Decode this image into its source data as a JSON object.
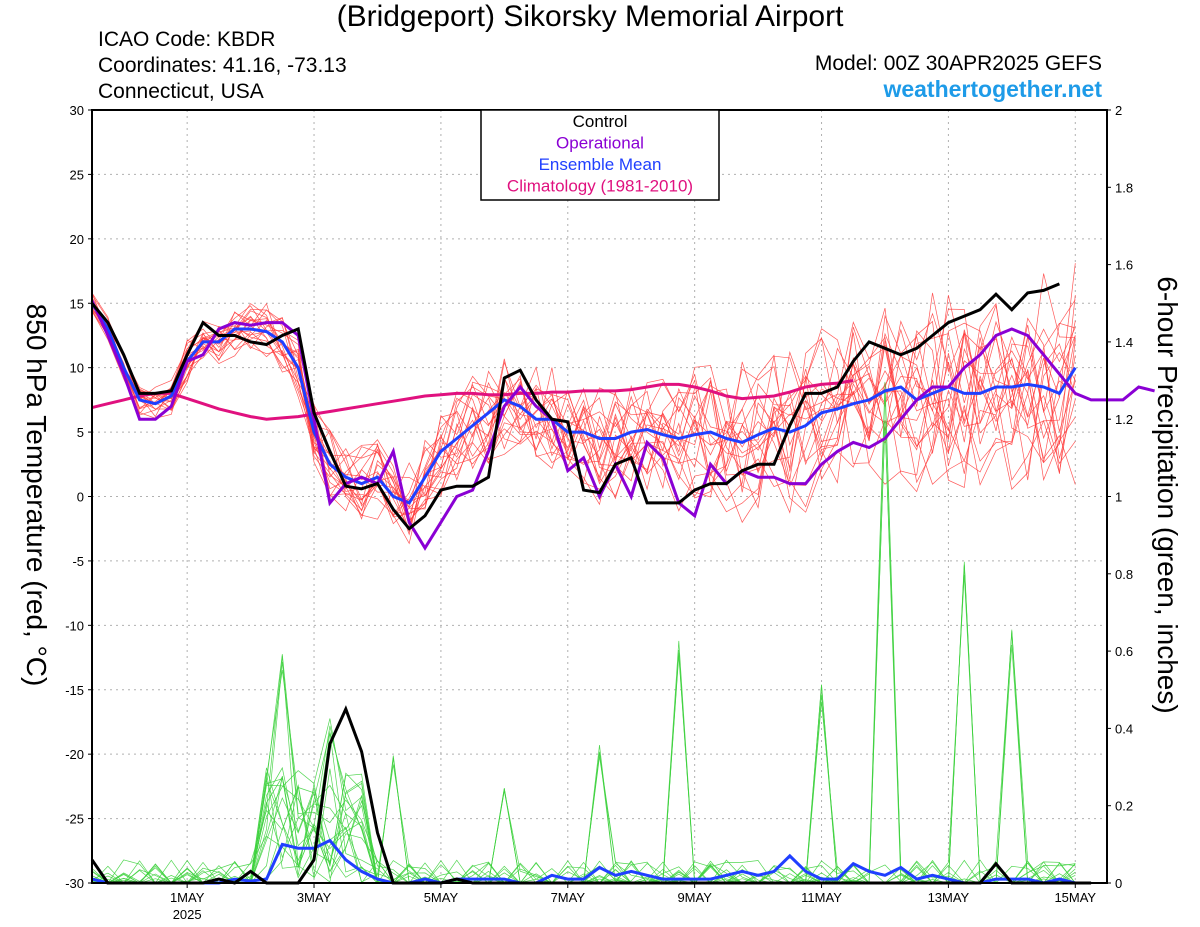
{
  "header": {
    "title": "(Bridgeport) Sikorsky Memorial Airport",
    "icao": "ICAO Code: KBDR",
    "coordinates": "Coordinates: 41.16, -73.13",
    "region": "Connecticut, USA",
    "model": "Model: 00Z 30APR2025 GEFS",
    "brand": "weathertogether.net"
  },
  "colors": {
    "control": "#000000",
    "operational": "#8a00d4",
    "ensemble_mean": "#1f3fff",
    "climatology": "#e0117f",
    "members_temp": "#ff3b3b",
    "members_precip": "#3fd13f",
    "brand": "#1e9be8"
  },
  "chart_data": {
    "type": "line",
    "xlabel": "",
    "ylabel": "850 hPa Temperature (red, °C)",
    "y2label": "6-hour Precipitation (green, inches)",
    "ylim": [
      -30,
      30
    ],
    "y2lim": [
      0,
      2
    ],
    "yticks": [
      30,
      25,
      20,
      15,
      10,
      5,
      0,
      -5,
      -10,
      -15,
      -20,
      -25,
      -30
    ],
    "y2ticks": [
      2,
      1.8,
      1.6,
      1.4,
      1.2,
      1,
      0.8,
      0.6,
      0.4,
      0.2,
      0
    ],
    "x_range_days": [
      "30APR2025 00Z",
      "16MAY2025 00Z"
    ],
    "x_step_hours": 6,
    "xticks": [
      {
        "day": 1.5,
        "label": "1MAY",
        "sublabel": "2025"
      },
      {
        "day": 3.5,
        "label": "3MAY",
        "sublabel": ""
      },
      {
        "day": 5.5,
        "label": "5MAY",
        "sublabel": ""
      },
      {
        "day": 7.5,
        "label": "7MAY",
        "sublabel": ""
      },
      {
        "day": 9.5,
        "label": "9MAY",
        "sublabel": ""
      },
      {
        "day": 11.5,
        "label": "11MAY",
        "sublabel": ""
      },
      {
        "day": 13.5,
        "label": "13MAY",
        "sublabel": ""
      },
      {
        "day": 15.5,
        "label": "15MAY",
        "sublabel": ""
      }
    ],
    "grid": true,
    "legend": {
      "placement": "top-center",
      "entries": [
        {
          "label": "Control",
          "color": "#000000"
        },
        {
          "label": "Operational",
          "color": "#8a00d4"
        },
        {
          "label": "Ensemble Mean",
          "color": "#1f3fff"
        },
        {
          "label": "Climatology (1981-2010)",
          "color": "#e0117f"
        }
      ]
    },
    "temperature_series": {
      "control": [
        15,
        13.5,
        11,
        8,
        8,
        8.2,
        11,
        13.5,
        12.5,
        12.5,
        12,
        11.8,
        12.5,
        13,
        6.5,
        3.5,
        0.8,
        0.6,
        1,
        -1,
        -2.5,
        -1.5,
        0.5,
        0.8,
        0.8,
        1.5,
        9.2,
        9.8,
        7.5,
        6,
        5.8,
        0.5,
        0.3,
        2.5,
        3,
        -0.5,
        -0.5,
        -0.5,
        0.5,
        1,
        1,
        2,
        2.5,
        2.5,
        5.5,
        8,
        8,
        8.5,
        10.5,
        12,
        11.5,
        11,
        11.5,
        12.5,
        13.5,
        14,
        14.5,
        15.7,
        14.5,
        15.8,
        16,
        16.5
      ],
      "operational": [
        15.2,
        12.5,
        9.5,
        6,
        6,
        7,
        10.5,
        11,
        13,
        13.5,
        13.3,
        13.5,
        13.5,
        12.5,
        6,
        -0.5,
        1,
        1.5,
        1,
        3.5,
        -2,
        -4,
        -2,
        0,
        0.5,
        3.5,
        7,
        8.5,
        7,
        6,
        2,
        3,
        0,
        2.5,
        0,
        4.2,
        3,
        -0.5,
        -1.5,
        2.5,
        1,
        2,
        1.5,
        1.5,
        1,
        1,
        2.5,
        3.5,
        4.2,
        3.8,
        4.5,
        6,
        7.5,
        8.5,
        8.5,
        10,
        11,
        12.5,
        13,
        12.5,
        11,
        9.5,
        8,
        7.5,
        7.5,
        7.5,
        8.5,
        8.2
      ],
      "ensemble_mean": [
        15,
        13,
        10,
        7.5,
        7.2,
        7.8,
        10.5,
        12,
        12,
        13,
        13,
        12.8,
        12,
        10,
        5,
        2.5,
        1.5,
        1,
        1.5,
        0,
        -0.5,
        1.5,
        3.5,
        4.5,
        5.5,
        6.5,
        7.5,
        7,
        6,
        6,
        5,
        5,
        4.5,
        4.5,
        5,
        5.2,
        4.8,
        4.5,
        4.8,
        5,
        4.5,
        4.2,
        4.8,
        5.3,
        5,
        5.5,
        6.5,
        6.8,
        7.2,
        7.5,
        8.2,
        8.5,
        7.5,
        8,
        8.5,
        8,
        8,
        8.5,
        8.5,
        8.7,
        8.5,
        8,
        10
      ],
      "climatology": [
        6.9,
        7.2,
        7.5,
        7.8,
        8,
        8,
        7.6,
        7.2,
        6.8,
        6.5,
        6.2,
        6,
        6.1,
        6.2,
        6.4,
        6.6,
        6.8,
        7,
        7.2,
        7.4,
        7.6,
        7.8,
        7.9,
        8,
        8,
        7.9,
        7.9,
        8,
        8,
        8.1,
        8.1,
        8.2,
        8.2,
        8.2,
        8.3,
        8.5,
        8.7,
        8.7,
        8.5,
        8.2,
        7.8,
        7.6,
        7.7,
        7.8,
        8.1,
        8.5,
        8.7,
        8.8,
        9
      ]
    },
    "precipitation_series": {
      "control": [
        0.06,
        0,
        0,
        0,
        0,
        0,
        0,
        0,
        0.01,
        0,
        0.03,
        0,
        0,
        0,
        0.06,
        0.36,
        0.45,
        0.34,
        0.13,
        0,
        0,
        0,
        0,
        0.01,
        0,
        0,
        0,
        0,
        0,
        0,
        0,
        0,
        0,
        0,
        0,
        0,
        0,
        0,
        0,
        0,
        0,
        0,
        0,
        0,
        0,
        0,
        0,
        0,
        0,
        0,
        0,
        0,
        0,
        0,
        0,
        0,
        0,
        0.05,
        0,
        0,
        0,
        0,
        0,
        0
      ],
      "ensemble_mean": [
        0.01,
        0,
        0,
        0,
        0,
        0,
        0,
        0,
        0,
        0.01,
        0.005,
        0.01,
        0.1,
        0.09,
        0.09,
        0.11,
        0.06,
        0.03,
        0.01,
        0,
        0,
        0.01,
        0,
        0.01,
        0.01,
        0.01,
        0.01,
        0,
        0,
        0.02,
        0.01,
        0.01,
        0.04,
        0.02,
        0.03,
        0.02,
        0.01,
        0.01,
        0.01,
        0.01,
        0.02,
        0.03,
        0.02,
        0.03,
        0.07,
        0.03,
        0.01,
        0.01,
        0.05,
        0.03,
        0.02,
        0.04,
        0.01,
        0.02,
        0.01,
        0,
        0,
        0.01,
        0.01,
        0.01,
        0,
        0.01,
        0
      ]
    }
  }
}
